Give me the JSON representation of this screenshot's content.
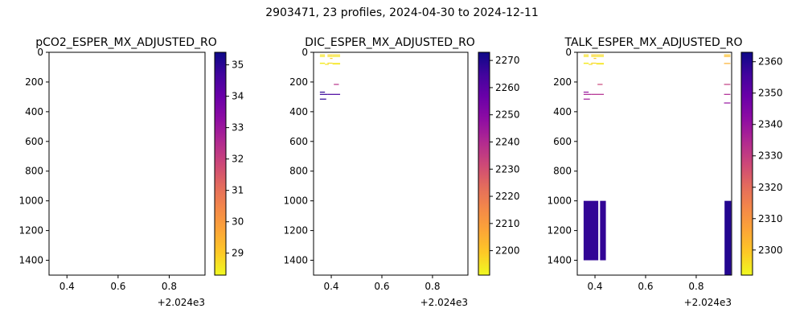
{
  "figure": {
    "title": "2903471, 23 profiles, 2024-04-30 to 2024-12-11"
  },
  "chart_data": [
    {
      "type": "heatmap",
      "title": "pCO2_ESPER_MX_ADJUSTED_RO",
      "xlim": [
        0.33,
        0.94
      ],
      "ylim": [
        1500,
        0
      ],
      "xticks": [
        "0.4",
        "0.6",
        "0.8"
      ],
      "xtick_values": [
        0.4,
        0.6,
        0.8
      ],
      "yticks": [
        "0",
        "200",
        "400",
        "600",
        "800",
        "1000",
        "1200",
        "1400"
      ],
      "ytick_values": [
        0,
        200,
        400,
        600,
        800,
        1000,
        1200,
        1400
      ],
      "x_offset_label": "+2.024e3",
      "colormap": "plasma_r",
      "colorbar": {
        "min": 28.3,
        "max": 35.4,
        "ticks": [
          "29",
          "30",
          "31",
          "32",
          "33",
          "34",
          "35"
        ],
        "tick_values": [
          29,
          30,
          31,
          32,
          33,
          34,
          35
        ]
      },
      "segments": []
    },
    {
      "type": "heatmap",
      "title": "DIC_ESPER_MX_ADJUSTED_RO",
      "xlim": [
        0.33,
        0.94
      ],
      "ylim": [
        1500,
        0
      ],
      "xticks": [
        "0.4",
        "0.6",
        "0.8"
      ],
      "xtick_values": [
        0.4,
        0.6,
        0.8
      ],
      "yticks": [
        "0",
        "200",
        "400",
        "600",
        "800",
        "1000",
        "1200",
        "1400"
      ],
      "ytick_values": [
        0,
        200,
        400,
        600,
        800,
        1000,
        1200,
        1400
      ],
      "x_offset_label": "+2.024e3",
      "colormap": "plasma_r",
      "colorbar": {
        "min": 2191,
        "max": 2273,
        "ticks": [
          "2200",
          "2210",
          "2220",
          "2230",
          "2240",
          "2250",
          "2260",
          "2270"
        ],
        "tick_values": [
          2200,
          2210,
          2220,
          2230,
          2240,
          2250,
          2260,
          2270
        ]
      },
      "segments": [
        {
          "x0": 0.355,
          "x1": 0.375,
          "d0": 15,
          "d1": 20,
          "v": 2195
        },
        {
          "x0": 0.385,
          "x1": 0.405,
          "d0": 15,
          "d1": 20,
          "v": 2197
        },
        {
          "x0": 0.405,
          "x1": 0.435,
          "d0": 15,
          "d1": 20,
          "v": 2196
        },
        {
          "x0": 0.355,
          "x1": 0.375,
          "d0": 25,
          "d1": 30,
          "v": 2194
        },
        {
          "x0": 0.385,
          "x1": 0.405,
          "d0": 25,
          "d1": 30,
          "v": 2195
        },
        {
          "x0": 0.405,
          "x1": 0.435,
          "d0": 25,
          "d1": 30,
          "v": 2194
        },
        {
          "x0": 0.395,
          "x1": 0.405,
          "d0": 38,
          "d1": 42,
          "v": 2198
        },
        {
          "x0": 0.355,
          "x1": 0.375,
          "d0": 70,
          "d1": 78,
          "v": 2193
        },
        {
          "x0": 0.375,
          "x1": 0.39,
          "d0": 78,
          "d1": 84,
          "v": 2195
        },
        {
          "x0": 0.385,
          "x1": 0.405,
          "d0": 70,
          "d1": 76,
          "v": 2196
        },
        {
          "x0": 0.405,
          "x1": 0.435,
          "d0": 72,
          "d1": 82,
          "v": 2194
        },
        {
          "x0": 0.41,
          "x1": 0.43,
          "d0": 213,
          "d1": 218,
          "v": 2238
        },
        {
          "x0": 0.355,
          "x1": 0.375,
          "d0": 265,
          "d1": 270,
          "v": 2268
        },
        {
          "x0": 0.355,
          "x1": 0.385,
          "d0": 280,
          "d1": 285,
          "v": 2266
        },
        {
          "x0": 0.385,
          "x1": 0.435,
          "d0": 280,
          "d1": 285,
          "v": 2263
        },
        {
          "x0": 0.355,
          "x1": 0.38,
          "d0": 312,
          "d1": 317,
          "v": 2268
        }
      ]
    },
    {
      "type": "heatmap",
      "title": "TALK_ESPER_MX_ADJUSTED_RO",
      "xlim": [
        0.33,
        0.94
      ],
      "ylim": [
        1500,
        0
      ],
      "xticks": [
        "0.4",
        "0.6",
        "0.8"
      ],
      "xtick_values": [
        0.4,
        0.6,
        0.8
      ],
      "yticks": [
        "0",
        "200",
        "400",
        "600",
        "800",
        "1000",
        "1200",
        "1400"
      ],
      "ytick_values": [
        0,
        200,
        400,
        600,
        800,
        1000,
        1200,
        1400
      ],
      "x_offset_label": "+2.024e3",
      "colormap": "plasma_r",
      "colorbar": {
        "min": 2292,
        "max": 2363,
        "ticks": [
          "2300",
          "2310",
          "2320",
          "2330",
          "2340",
          "2350",
          "2360"
        ],
        "tick_values": [
          2300,
          2310,
          2320,
          2330,
          2340,
          2350,
          2360
        ]
      },
      "segments": [
        {
          "x0": 0.355,
          "x1": 0.375,
          "d0": 15,
          "d1": 20,
          "v": 2296
        },
        {
          "x0": 0.385,
          "x1": 0.405,
          "d0": 15,
          "d1": 20,
          "v": 2298
        },
        {
          "x0": 0.405,
          "x1": 0.435,
          "d0": 15,
          "d1": 20,
          "v": 2297
        },
        {
          "x0": 0.355,
          "x1": 0.375,
          "d0": 25,
          "d1": 30,
          "v": 2295
        },
        {
          "x0": 0.385,
          "x1": 0.405,
          "d0": 25,
          "d1": 30,
          "v": 2296
        },
        {
          "x0": 0.405,
          "x1": 0.435,
          "d0": 25,
          "d1": 30,
          "v": 2295
        },
        {
          "x0": 0.395,
          "x1": 0.405,
          "d0": 38,
          "d1": 42,
          "v": 2299
        },
        {
          "x0": 0.355,
          "x1": 0.375,
          "d0": 70,
          "d1": 78,
          "v": 2294
        },
        {
          "x0": 0.375,
          "x1": 0.39,
          "d0": 78,
          "d1": 84,
          "v": 2296
        },
        {
          "x0": 0.385,
          "x1": 0.405,
          "d0": 70,
          "d1": 76,
          "v": 2297
        },
        {
          "x0": 0.405,
          "x1": 0.435,
          "d0": 72,
          "d1": 82,
          "v": 2295
        },
        {
          "x0": 0.41,
          "x1": 0.43,
          "d0": 213,
          "d1": 218,
          "v": 2328
        },
        {
          "x0": 0.355,
          "x1": 0.375,
          "d0": 265,
          "d1": 270,
          "v": 2340
        },
        {
          "x0": 0.355,
          "x1": 0.385,
          "d0": 280,
          "d1": 285,
          "v": 2336
        },
        {
          "x0": 0.385,
          "x1": 0.435,
          "d0": 280,
          "d1": 285,
          "v": 2334
        },
        {
          "x0": 0.355,
          "x1": 0.38,
          "d0": 312,
          "d1": 317,
          "v": 2338
        },
        {
          "x0": 0.355,
          "x1": 0.413,
          "d0": 1000,
          "d1": 1400,
          "v": 2358
        },
        {
          "x0": 0.42,
          "x1": 0.443,
          "d0": 1000,
          "d1": 1400,
          "v": 2358
        },
        {
          "x0": 0.91,
          "x1": 0.935,
          "d0": 15,
          "d1": 20,
          "v": 2300
        },
        {
          "x0": 0.91,
          "x1": 0.935,
          "d0": 25,
          "d1": 30,
          "v": 2302
        },
        {
          "x0": 0.91,
          "x1": 0.935,
          "d0": 72,
          "d1": 78,
          "v": 2304
        },
        {
          "x0": 0.91,
          "x1": 0.935,
          "d0": 213,
          "d1": 218,
          "v": 2330
        },
        {
          "x0": 0.91,
          "x1": 0.935,
          "d0": 280,
          "d1": 285,
          "v": 2335
        },
        {
          "x0": 0.91,
          "x1": 0.935,
          "d0": 338,
          "d1": 343,
          "v": 2340
        },
        {
          "x0": 0.912,
          "x1": 0.938,
          "d0": 1000,
          "d1": 1500,
          "v": 2360
        }
      ]
    }
  ]
}
